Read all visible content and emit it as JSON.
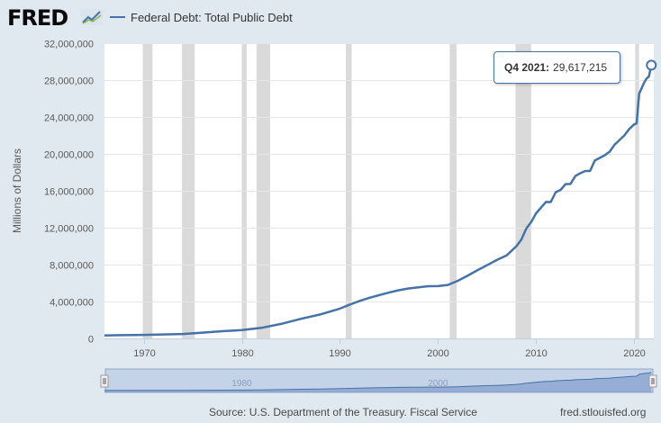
{
  "brand": {
    "logo_text": "FRED",
    "colors": {
      "line": "#4572a7",
      "recession": "#d3d3d3",
      "background": "#e1e9f0",
      "plot": "#ffffff"
    }
  },
  "legend": {
    "label": "Federal Debt: Total Public Debt"
  },
  "tooltip": {
    "date": "Q4 2021:",
    "value": "29,617,215"
  },
  "footer": {
    "source": "Source: U.S. Department of the Treasury. Fiscal Service",
    "url": "fred.stlouisfed.org"
  },
  "navigator": {
    "labels": [
      "1980",
      "2000"
    ]
  },
  "chart_data": {
    "type": "line",
    "title": "Federal Debt: Total Public Debt",
    "xlabel": "",
    "ylabel": "Millions of Dollars",
    "xlim": [
      1966.0,
      2022.0
    ],
    "ylim": [
      0,
      32000000
    ],
    "x_ticks": [
      1970,
      1980,
      1990,
      2000,
      2010,
      2020
    ],
    "x_tick_labels": [
      "1970",
      "1980",
      "1990",
      "2000",
      "2010",
      "2020"
    ],
    "y_ticks": [
      0,
      4000000,
      8000000,
      12000000,
      16000000,
      20000000,
      24000000,
      28000000,
      32000000
    ],
    "y_tick_labels": [
      "0",
      "4,000,000",
      "8,000,000",
      "12,000,000",
      "16,000,000",
      "20,000,000",
      "24,000,000",
      "28,000,000",
      "32,000,000"
    ],
    "recessions": [
      [
        1969.9,
        1970.9
      ],
      [
        1973.9,
        1975.2
      ],
      [
        1980.0,
        1980.5
      ],
      [
        1981.5,
        1982.9
      ],
      [
        1990.6,
        1991.2
      ],
      [
        2001.2,
        2001.9
      ],
      [
        2007.9,
        2009.5
      ],
      [
        2020.1,
        2020.5
      ]
    ],
    "series": [
      {
        "name": "Federal Debt: Total Public Debt",
        "x": [
          1966.0,
          1968.0,
          1970.0,
          1972.0,
          1974.0,
          1976.0,
          1978.0,
          1980.0,
          1982.0,
          1984.0,
          1986.0,
          1988.0,
          1990.0,
          1991.0,
          1992.0,
          1993.0,
          1994.0,
          1995.0,
          1996.0,
          1997.0,
          1998.0,
          1999.0,
          2000.0,
          2001.0,
          2002.0,
          2003.0,
          2004.0,
          2005.0,
          2006.0,
          2007.0,
          2008.0,
          2008.5,
          2009.0,
          2009.5,
          2010.0,
          2011.0,
          2011.5,
          2012.0,
          2012.5,
          2013.0,
          2013.5,
          2014.0,
          2014.5,
          2015.0,
          2015.5,
          2016.0,
          2016.5,
          2017.0,
          2017.5,
          2018.0,
          2018.5,
          2019.0,
          2019.5,
          2020.0,
          2020.25,
          2020.5,
          2020.75,
          2021.0,
          2021.25,
          2021.5,
          2021.75
        ],
        "values": [
          320000,
          350000,
          380000,
          430000,
          480000,
          620000,
          780000,
          908000,
          1140000,
          1570000,
          2120000,
          2600000,
          3230000,
          3660000,
          4060000,
          4400000,
          4690000,
          4970000,
          5220000,
          5410000,
          5530000,
          5660000,
          5670000,
          5800000,
          6230000,
          6780000,
          7380000,
          7930000,
          8500000,
          9000000,
          10000000,
          10700000,
          11900000,
          12600000,
          13560000,
          14790000,
          14780000,
          15850000,
          16100000,
          16720000,
          16740000,
          17600000,
          17900000,
          18150000,
          18150000,
          19300000,
          19570000,
          19850000,
          20240000,
          21000000,
          21500000,
          22000000,
          22700000,
          23200000,
          23300000,
          26500000,
          27100000,
          27700000,
          28150000,
          28400000,
          29617215
        ]
      }
    ],
    "highlight": {
      "x": 2021.75,
      "value": 29617215,
      "label": "Q4 2021"
    }
  }
}
